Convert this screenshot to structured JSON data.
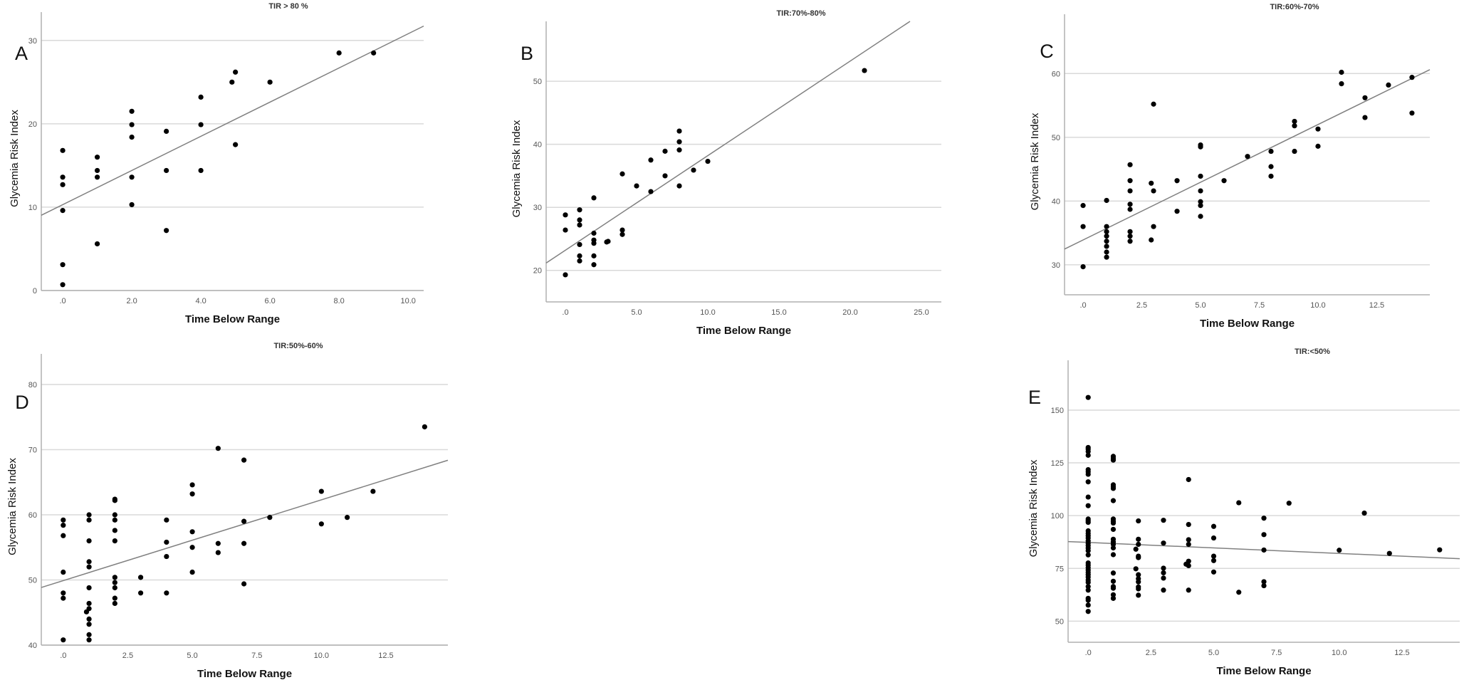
{
  "chart_data": [
    {
      "type": "scatter",
      "panel_label": "A",
      "title": "TIR > 80 %",
      "xlabel": "Time Below Range",
      "ylabel": "Glycemia Risk Index",
      "xlim": [
        -0.62,
        10.45
      ],
      "ylim": [
        0,
        33.4
      ],
      "grid": "horizontal",
      "xticks": [
        {
          "v": 0,
          "label": ".0"
        },
        {
          "v": 2,
          "label": "2.0"
        },
        {
          "v": 4,
          "label": "4.0"
        },
        {
          "v": 6,
          "label": "6.0"
        },
        {
          "v": 8,
          "label": "8.0"
        },
        {
          "v": 10,
          "label": "10.0"
        }
      ],
      "yticks": [
        {
          "v": 0,
          "label": "0"
        },
        {
          "v": 10,
          "label": "10"
        },
        {
          "v": 20,
          "label": "20"
        },
        {
          "v": 30,
          "label": "30"
        }
      ],
      "fit_line": {
        "intercept": 10.3,
        "slope": 2.05
      },
      "points": [
        [
          0,
          16.8
        ],
        [
          0,
          13.6
        ],
        [
          0,
          12.7
        ],
        [
          0,
          9.6
        ],
        [
          0,
          3.1
        ],
        [
          0,
          0.7
        ],
        [
          1,
          16.0
        ],
        [
          1,
          14.4
        ],
        [
          1,
          13.6
        ],
        [
          1,
          5.6
        ],
        [
          2,
          21.5
        ],
        [
          2,
          19.9
        ],
        [
          2,
          18.4
        ],
        [
          2,
          13.6
        ],
        [
          2,
          10.3
        ],
        [
          3,
          19.1
        ],
        [
          3,
          14.4
        ],
        [
          3,
          7.2
        ],
        [
          4,
          23.2
        ],
        [
          4,
          19.9
        ],
        [
          4,
          14.4
        ],
        [
          4.9,
          25.0
        ],
        [
          5,
          26.2
        ],
        [
          5,
          17.5
        ],
        [
          6,
          25.0
        ],
        [
          8,
          28.5
        ],
        [
          9,
          28.5
        ]
      ]
    },
    {
      "type": "scatter",
      "panel_label": "B",
      "title": "TIR:70%-80%",
      "xlabel": "Time Below Range",
      "ylabel": "Glycemia Risk Index",
      "xlim": [
        -1.35,
        26.4
      ],
      "ylim": [
        15.0,
        59.5
      ],
      "grid": "horizontal",
      "xticks": [
        {
          "v": 0,
          "label": ".0"
        },
        {
          "v": 5,
          "label": "5.0"
        },
        {
          "v": 10,
          "label": "10.0"
        },
        {
          "v": 15,
          "label": "15.0"
        },
        {
          "v": 20,
          "label": "20.0"
        },
        {
          "v": 25,
          "label": "25.0"
        }
      ],
      "yticks": [
        {
          "v": 20,
          "label": "20"
        },
        {
          "v": 30,
          "label": "30"
        },
        {
          "v": 40,
          "label": "40"
        },
        {
          "v": 50,
          "label": "50"
        }
      ],
      "fit_line": {
        "intercept": 23.2,
        "slope": 1.5
      },
      "points": [
        [
          0,
          28.8
        ],
        [
          0,
          26.4
        ],
        [
          0,
          19.3
        ],
        [
          1,
          29.6
        ],
        [
          1,
          28.0
        ],
        [
          1,
          27.2
        ],
        [
          1,
          24.1
        ],
        [
          1,
          22.3
        ],
        [
          1,
          21.5
        ],
        [
          2,
          31.5
        ],
        [
          2,
          25.9
        ],
        [
          2,
          24.8
        ],
        [
          2,
          24.3
        ],
        [
          2,
          22.3
        ],
        [
          2,
          20.9
        ],
        [
          2.9,
          24.5
        ],
        [
          3,
          24.6
        ],
        [
          4,
          35.3
        ],
        [
          4,
          26.4
        ],
        [
          4,
          25.7
        ],
        [
          5,
          33.4
        ],
        [
          6,
          37.5
        ],
        [
          6,
          32.5
        ],
        [
          7,
          38.9
        ],
        [
          7,
          35.0
        ],
        [
          8,
          42.1
        ],
        [
          8,
          40.4
        ],
        [
          8,
          39.1
        ],
        [
          8,
          33.4
        ],
        [
          9,
          35.9
        ],
        [
          10,
          37.3
        ],
        [
          21,
          51.7
        ]
      ]
    },
    {
      "type": "scatter",
      "panel_label": "C",
      "title": "TIR:60%-70%",
      "xlabel": "Time Below Range",
      "ylabel": "Glycemia Risk Index",
      "xlim": [
        -0.79,
        14.76
      ],
      "ylim": [
        25.3,
        69.3
      ],
      "grid": "horizontal",
      "xticks": [
        {
          "v": 0,
          "label": ".0"
        },
        {
          "v": 2.5,
          "label": "2.5"
        },
        {
          "v": 5,
          "label": "5.0"
        },
        {
          "v": 7.5,
          "label": "7.5"
        },
        {
          "v": 10,
          "label": "10.0"
        },
        {
          "v": 12.5,
          "label": "12.5"
        }
      ],
      "yticks": [
        {
          "v": 30,
          "label": "30"
        },
        {
          "v": 40,
          "label": "40"
        },
        {
          "v": 50,
          "label": "50"
        },
        {
          "v": 60,
          "label": "60"
        }
      ],
      "fit_line": {
        "intercept": 33.9,
        "slope": 1.81
      },
      "points": [
        [
          0,
          39.3
        ],
        [
          0,
          36.0
        ],
        [
          0,
          29.7
        ],
        [
          1,
          40.1
        ],
        [
          1,
          36.0
        ],
        [
          1,
          35.2
        ],
        [
          1,
          34.5
        ],
        [
          1,
          33.7
        ],
        [
          1,
          32.9
        ],
        [
          1,
          32.0
        ],
        [
          1,
          31.2
        ],
        [
          2,
          45.7
        ],
        [
          2,
          43.2
        ],
        [
          2,
          41.6
        ],
        [
          2,
          39.5
        ],
        [
          2,
          38.7
        ],
        [
          2,
          35.2
        ],
        [
          2,
          34.5
        ],
        [
          2,
          33.7
        ],
        [
          2.9,
          42.8
        ],
        [
          2.9,
          33.9
        ],
        [
          3,
          55.2
        ],
        [
          3,
          41.6
        ],
        [
          3,
          36.0
        ],
        [
          4,
          43.2
        ],
        [
          4,
          38.4
        ],
        [
          5,
          48.8
        ],
        [
          5,
          48.5
        ],
        [
          5,
          43.9
        ],
        [
          5,
          41.6
        ],
        [
          5,
          39.9
        ],
        [
          5,
          39.3
        ],
        [
          5,
          37.6
        ],
        [
          6,
          43.2
        ],
        [
          7,
          47.0
        ],
        [
          8,
          47.8
        ],
        [
          8,
          45.4
        ],
        [
          8,
          43.9
        ],
        [
          9,
          52.5
        ],
        [
          9,
          51.8
        ],
        [
          9,
          47.8
        ],
        [
          10,
          51.3
        ],
        [
          10,
          48.6
        ],
        [
          11,
          60.2
        ],
        [
          11,
          58.4
        ],
        [
          12,
          56.2
        ],
        [
          12,
          53.1
        ],
        [
          13,
          58.2
        ],
        [
          14,
          59.4
        ],
        [
          14,
          53.8
        ]
      ]
    },
    {
      "type": "scatter",
      "panel_label": "D",
      "title": "TIR:50%-60%",
      "xlabel": "Time Below Range",
      "ylabel": "Glycemia Risk Index",
      "xlim": [
        -0.85,
        14.9
      ],
      "ylim": [
        40,
        84.7
      ],
      "grid": "horizontal",
      "xticks": [
        {
          "v": 0,
          "label": ".0"
        },
        {
          "v": 2.5,
          "label": "2.5"
        },
        {
          "v": 5,
          "label": "5.0"
        },
        {
          "v": 7.5,
          "label": "7.5"
        },
        {
          "v": 10,
          "label": "10.0"
        },
        {
          "v": 12.5,
          "label": "12.5"
        }
      ],
      "yticks": [
        {
          "v": 40,
          "label": "40"
        },
        {
          "v": 50,
          "label": "50"
        },
        {
          "v": 60,
          "label": "60"
        },
        {
          "v": 70,
          "label": "70"
        },
        {
          "v": 80,
          "label": "80"
        }
      ],
      "fit_line": {
        "intercept": 49.9,
        "slope": 1.24
      },
      "points": [
        [
          0,
          59.2
        ],
        [
          0,
          58.4
        ],
        [
          0,
          56.8
        ],
        [
          0,
          51.2
        ],
        [
          0,
          48.0
        ],
        [
          0,
          47.2
        ],
        [
          0,
          40.8
        ],
        [
          1,
          60.0
        ],
        [
          1,
          59.2
        ],
        [
          1,
          56.0
        ],
        [
          1,
          52.8
        ],
        [
          1,
          52.0
        ],
        [
          1,
          48.8
        ],
        [
          1,
          46.4
        ],
        [
          1,
          45.6
        ],
        [
          0.9,
          45.1
        ],
        [
          1,
          44.0
        ],
        [
          1,
          43.2
        ],
        [
          1,
          41.6
        ],
        [
          1,
          40.8
        ],
        [
          2,
          62.4
        ],
        [
          2,
          62.2
        ],
        [
          2,
          60.0
        ],
        [
          2,
          59.2
        ],
        [
          2,
          57.6
        ],
        [
          2,
          56.0
        ],
        [
          2,
          50.4
        ],
        [
          2,
          49.6
        ],
        [
          2,
          48.8
        ],
        [
          2,
          47.2
        ],
        [
          2,
          46.4
        ],
        [
          3,
          50.4
        ],
        [
          3,
          48.0
        ],
        [
          4,
          59.2
        ],
        [
          4,
          55.8
        ],
        [
          4,
          53.6
        ],
        [
          4,
          48.0
        ],
        [
          5,
          64.6
        ],
        [
          5,
          63.2
        ],
        [
          5,
          57.4
        ],
        [
          5,
          55.0
        ],
        [
          5,
          51.2
        ],
        [
          6,
          70.2
        ],
        [
          6,
          55.6
        ],
        [
          6,
          54.2
        ],
        [
          7,
          68.4
        ],
        [
          7,
          59.0
        ],
        [
          7,
          55.6
        ],
        [
          7,
          49.4
        ],
        [
          8,
          59.6
        ],
        [
          10,
          63.6
        ],
        [
          10,
          58.6
        ],
        [
          11,
          59.6
        ],
        [
          12,
          63.6
        ],
        [
          14,
          73.5
        ]
      ]
    },
    {
      "type": "scatter",
      "panel_label": "E",
      "title": "TIR:<50%",
      "xlabel": "Time Below Range",
      "ylabel": "Glycemia Risk Index",
      "xlim": [
        -0.8,
        14.8
      ],
      "ylim": [
        40,
        173.6
      ],
      "grid": "horizontal",
      "xticks": [
        {
          "v": 0,
          "label": ".0"
        },
        {
          "v": 2.5,
          "label": "2.5"
        },
        {
          "v": 5,
          "label": "5.0"
        },
        {
          "v": 7.5,
          "label": "7.5"
        },
        {
          "v": 10,
          "label": "10.0"
        },
        {
          "v": 12.5,
          "label": "12.5"
        }
      ],
      "yticks": [
        {
          "v": 50,
          "label": "50"
        },
        {
          "v": 75,
          "label": "75"
        },
        {
          "v": 100,
          "label": "100"
        },
        {
          "v": 125,
          "label": "125"
        },
        {
          "v": 150,
          "label": "150"
        }
      ],
      "fit_line": {
        "intercept": 87.3,
        "slope": -0.52
      },
      "points": [
        [
          0,
          156
        ],
        [
          0,
          132.3
        ],
        [
          0,
          131.5
        ],
        [
          0,
          130.4
        ],
        [
          0,
          128.6
        ],
        [
          0,
          121.8
        ],
        [
          0,
          120.8
        ],
        [
          0,
          119.6
        ],
        [
          0,
          116.0
        ],
        [
          0,
          108.8
        ],
        [
          0,
          104.7
        ],
        [
          0,
          98.4
        ],
        [
          0,
          97.6
        ],
        [
          0,
          96.8
        ],
        [
          0,
          92.8
        ],
        [
          0,
          91.6
        ],
        [
          0,
          90.5
        ],
        [
          0,
          89.4
        ],
        [
          0,
          88.0
        ],
        [
          0,
          86.9
        ],
        [
          0,
          85.8
        ],
        [
          0,
          84.6
        ],
        [
          0,
          83.4
        ],
        [
          0,
          81.4
        ],
        [
          0,
          77.6
        ],
        [
          0,
          76.5
        ],
        [
          0,
          75.4
        ],
        [
          0,
          74.2
        ],
        [
          0,
          73.1
        ],
        [
          0,
          72.0
        ],
        [
          0,
          70.9
        ],
        [
          0,
          69.5
        ],
        [
          0,
          68.4
        ],
        [
          0,
          66.4
        ],
        [
          0,
          64.7
        ],
        [
          0,
          60.8
        ],
        [
          0,
          59.9
        ],
        [
          0,
          57.6
        ],
        [
          0,
          54.6
        ],
        [
          1,
          128.1
        ],
        [
          1,
          127.2
        ],
        [
          1,
          126.3
        ],
        [
          1,
          114.6
        ],
        [
          1,
          113.7
        ],
        [
          1,
          112.9
        ],
        [
          1,
          107.1
        ],
        [
          1,
          98.4
        ],
        [
          1,
          97.3
        ],
        [
          1,
          96.5
        ],
        [
          1,
          93.5
        ],
        [
          1,
          88.8
        ],
        [
          1,
          87.5
        ],
        [
          1,
          86.4
        ],
        [
          1,
          84.7
        ],
        [
          1,
          81.5
        ],
        [
          1,
          72.8
        ],
        [
          1,
          68.9
        ],
        [
          1,
          66.4
        ],
        [
          1,
          65.6
        ],
        [
          1,
          62.5
        ],
        [
          1,
          60.8
        ],
        [
          2,
          97.5
        ],
        [
          2,
          88.8
        ],
        [
          2,
          86.4
        ],
        [
          1.9,
          84.1
        ],
        [
          2,
          80.8
        ],
        [
          2,
          80.1
        ],
        [
          1.9,
          74.8
        ],
        [
          2,
          72.0
        ],
        [
          2,
          70.1
        ],
        [
          2,
          68.6
        ],
        [
          2,
          66.2
        ],
        [
          2,
          65.3
        ],
        [
          2,
          62.3
        ],
        [
          3,
          97.8
        ],
        [
          3,
          87.0
        ],
        [
          3,
          75.1
        ],
        [
          3,
          72.9
        ],
        [
          3,
          70.4
        ],
        [
          3,
          64.7
        ],
        [
          4,
          117.1
        ],
        [
          4,
          95.8
        ],
        [
          4,
          88.6
        ],
        [
          4,
          86.4
        ],
        [
          4,
          78.4
        ],
        [
          3.9,
          77.0
        ],
        [
          4,
          76.3
        ],
        [
          4,
          64.7
        ],
        [
          5,
          94.9
        ],
        [
          5,
          89.4
        ],
        [
          5,
          80.8
        ],
        [
          5,
          78.7
        ],
        [
          5,
          73.3
        ],
        [
          6,
          106.1
        ],
        [
          6,
          63.7
        ],
        [
          7,
          98.8
        ],
        [
          7,
          91.0
        ],
        [
          7,
          83.7
        ],
        [
          7,
          68.7
        ],
        [
          7,
          66.8
        ],
        [
          8,
          105.9
        ],
        [
          10,
          83.6
        ],
        [
          11,
          101.2
        ],
        [
          12,
          82.1
        ],
        [
          14,
          83.8
        ]
      ]
    }
  ],
  "colors": {
    "points": "#000000",
    "fit_line": "#808080",
    "grid": "#d9d9d9",
    "axis": "#b0b0b0"
  }
}
